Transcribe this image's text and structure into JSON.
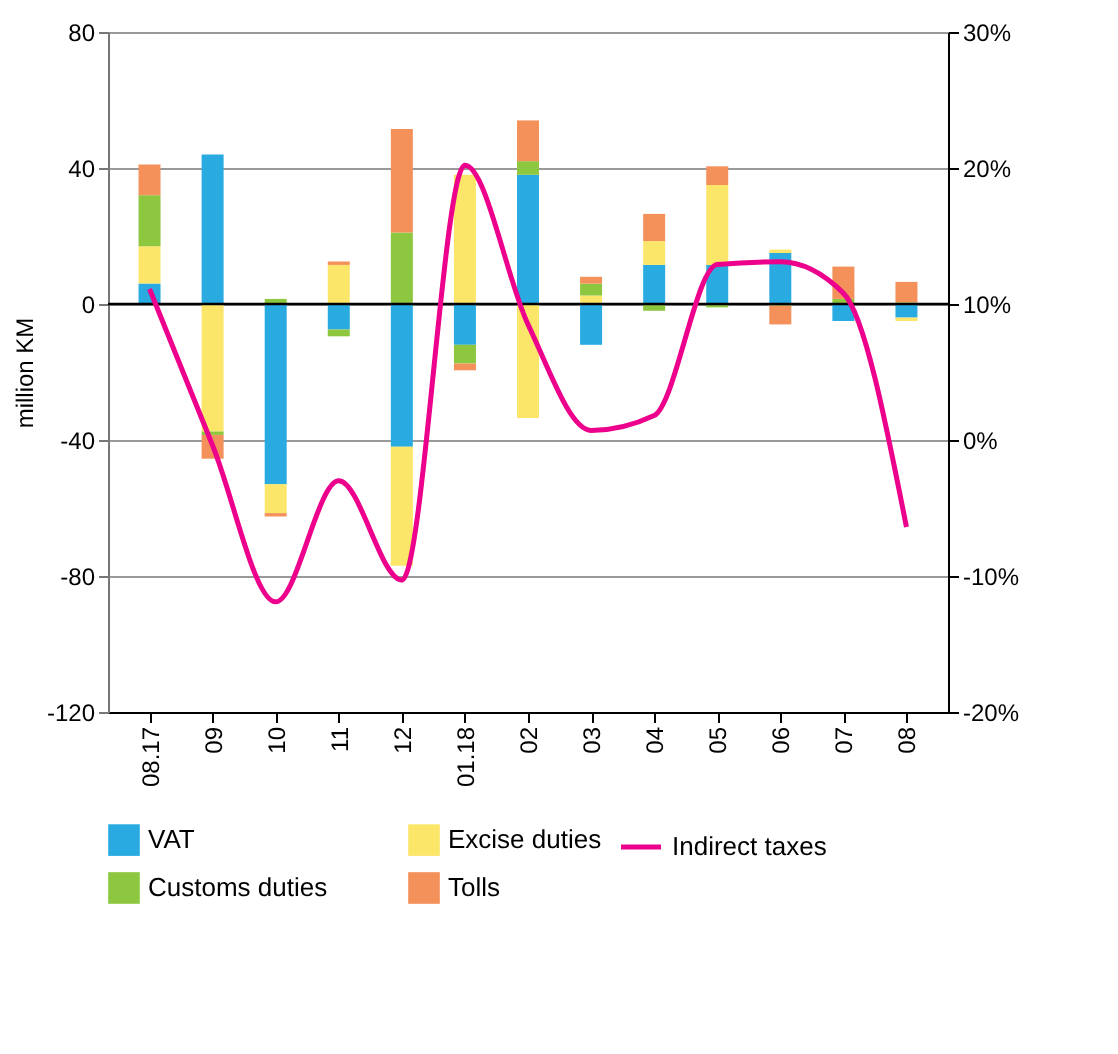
{
  "chart_data": {
    "type": "bar",
    "stacked": true,
    "categories": [
      "08.17",
      "09",
      "10",
      "11",
      "12",
      "01.18",
      "02",
      "03",
      "04",
      "05",
      "06",
      "07",
      "08"
    ],
    "ylabel": "million KM",
    "ylim": [
      -120,
      80
    ],
    "yticks": [
      -120,
      -80,
      -40,
      0,
      40,
      80
    ],
    "y2lim": [
      -20,
      30
    ],
    "y2ticks": [
      {
        "value": -20,
        "label": "-20%"
      },
      {
        "value": -10,
        "label": "-10%"
      },
      {
        "value": 0,
        "label": "0%"
      },
      {
        "value": 10,
        "label": "10%"
      },
      {
        "value": 20,
        "label": "20%"
      },
      {
        "value": 30,
        "label": "30%"
      }
    ],
    "series": [
      {
        "name": "VAT",
        "color": "#29abe2",
        "values": [
          6,
          44,
          -53,
          -7.5,
          -42,
          -12,
          38,
          -12,
          11.5,
          11.5,
          15,
          -5,
          -4
        ]
      },
      {
        "name": "Excise duties",
        "color": "#fce66a",
        "values": [
          11,
          -37.5,
          -8.5,
          11.5,
          -35,
          38,
          -33.5,
          2.5,
          7,
          23.5,
          1,
          0,
          -1
        ]
      },
      {
        "name": "Customs duties",
        "color": "#8dc63f",
        "values": [
          15,
          -1,
          1.5,
          -2,
          21,
          -5.5,
          4,
          3.5,
          -2,
          -1,
          -0.5,
          1.5,
          0.5
        ]
      },
      {
        "name": "Tolls",
        "color": "#f4905a",
        "values": [
          9,
          -7,
          -1,
          1,
          30.5,
          -2,
          12,
          2,
          8,
          5.5,
          -5.5,
          9.5,
          6
        ]
      },
      {
        "name": "Indirect taxes",
        "type": "line",
        "axis": "y2",
        "color": "#ec008c",
        "values": [
          11.1,
          -0.4,
          -11.9,
          -3,
          -10.3,
          20.2,
          8.5,
          0.7,
          1.8,
          12.9,
          13.1,
          10.8,
          -6.4
        ]
      }
    ],
    "ref_lines": [
      {
        "axis": "y",
        "value": 0,
        "color": "#000000"
      }
    ],
    "grid": "y",
    "legend": "bottom"
  }
}
